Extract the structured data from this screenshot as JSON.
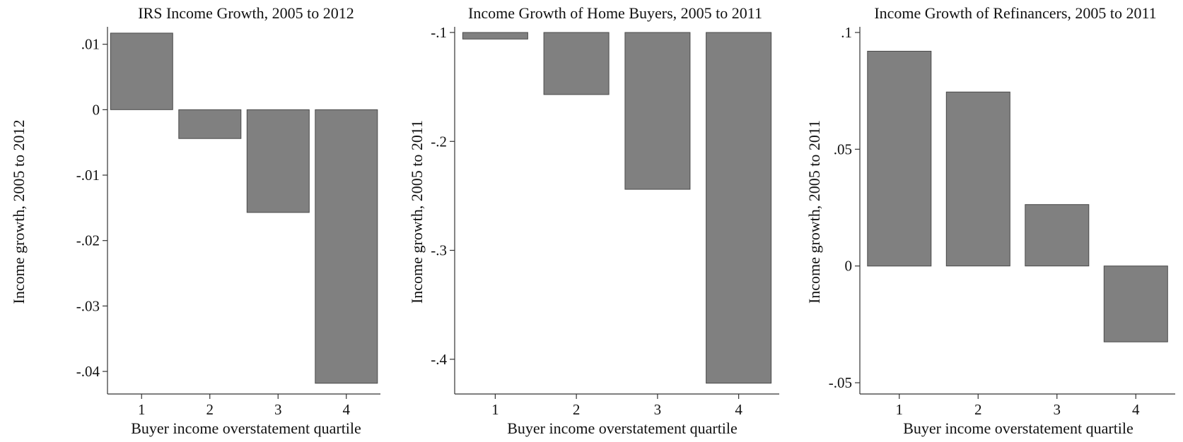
{
  "chart_data": [
    {
      "type": "bar",
      "title": "IRS Income Growth, 2005 to 2012",
      "xlabel": "Buyer income overstatement quartile",
      "ylabel": "Income growth, 2005 to 2012",
      "categories": [
        "1",
        "2",
        "3",
        "4"
      ],
      "values": [
        0.0117,
        -0.0044,
        -0.0157,
        -0.0418
      ],
      "base": 0,
      "ylim": [
        -0.0428,
        0.0118
      ],
      "yticks": [
        0.01,
        0,
        -0.01,
        -0.02,
        -0.03,
        -0.04
      ],
      "ytick_labels": [
        ".01",
        "0",
        "-.01",
        "-.02",
        "-.03",
        "-.04"
      ],
      "bar_color": "#808080",
      "grid": false,
      "legend": "none"
    },
    {
      "type": "bar",
      "title": "Income Growth of Home Buyers, 2005 to 2011",
      "xlabel": "Buyer income overstatement quartile",
      "ylabel": "Income growth, 2005 to 2011",
      "categories": [
        "1",
        "2",
        "3",
        "4"
      ],
      "values": [
        -0.106,
        -0.157,
        -0.244,
        -0.422
      ],
      "base": -0.1,
      "ylim": [
        -0.428,
        -0.1
      ],
      "yticks": [
        -0.1,
        -0.2,
        -0.3,
        -0.4
      ],
      "ytick_labels": [
        "-.1",
        "-.2",
        "-.3",
        "-.4"
      ],
      "bar_color": "#808080",
      "grid": false,
      "legend": "none"
    },
    {
      "type": "bar",
      "title": "Income Growth of Refinancers, 2005 to 2011",
      "xlabel": "Buyer income overstatement quartile",
      "ylabel": "Income growth, 2005 to 2011",
      "categories": [
        "1",
        "2",
        "3",
        "4"
      ],
      "values": [
        0.092,
        0.0745,
        0.0263,
        -0.0325
      ],
      "base": 0,
      "ylim": [
        -0.053,
        0.1
      ],
      "yticks": [
        0.1,
        0.05,
        0,
        -0.05
      ],
      "ytick_labels": [
        ".1",
        ".05",
        "0",
        "-.05"
      ],
      "bar_color": "#808080",
      "grid": false,
      "legend": "none"
    }
  ]
}
